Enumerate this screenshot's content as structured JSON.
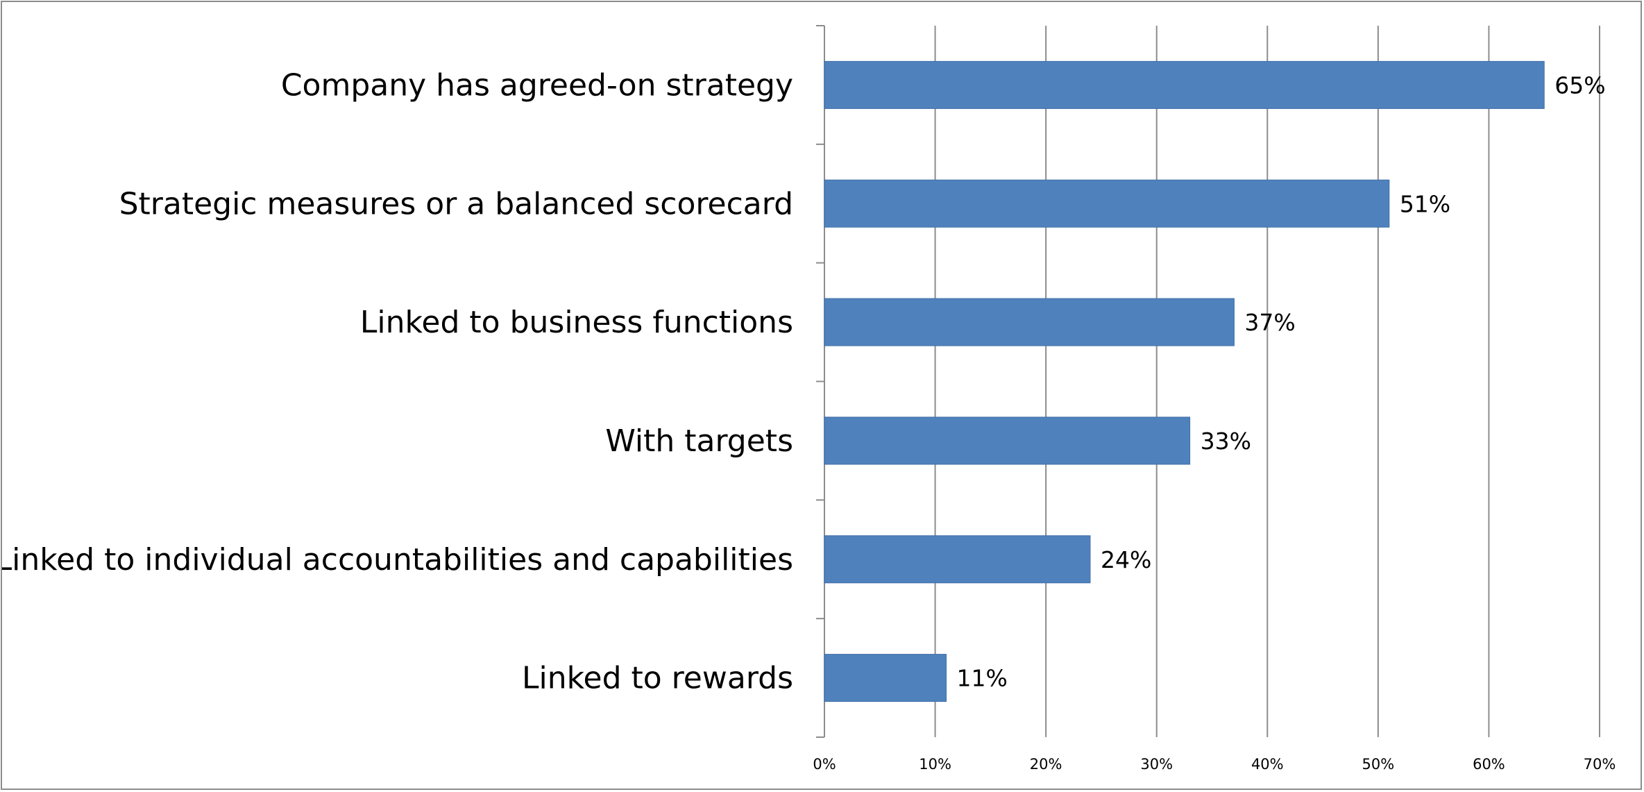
{
  "chart_data": {
    "type": "bar",
    "orientation": "horizontal",
    "categories": [
      "Company has agreed-on strategy",
      "Strategic measures or a balanced scorecard",
      "Linked to business functions",
      "With targets",
      "Linked to individual accountabilities and capabilities",
      "Linked to rewards"
    ],
    "values": [
      65,
      51,
      37,
      33,
      24,
      11
    ],
    "value_labels": [
      "65%",
      "51%",
      "37%",
      "33%",
      "24%",
      "11%"
    ],
    "title": "",
    "xlabel": "",
    "ylabel": "",
    "xlim": [
      0,
      70
    ],
    "x_ticks": [
      0,
      10,
      20,
      30,
      40,
      50,
      60,
      70
    ],
    "x_tick_labels": [
      "0%",
      "10%",
      "20%",
      "30%",
      "40%",
      "50%",
      "60%",
      "70%"
    ],
    "grid": true,
    "legend": "none",
    "colors": {
      "bar": "#4f81bd",
      "bar_edge": "#3f6fa8",
      "grid": "#8c8c8c",
      "axis": "#8c8c8c",
      "frame": "#8c8c8c"
    }
  }
}
